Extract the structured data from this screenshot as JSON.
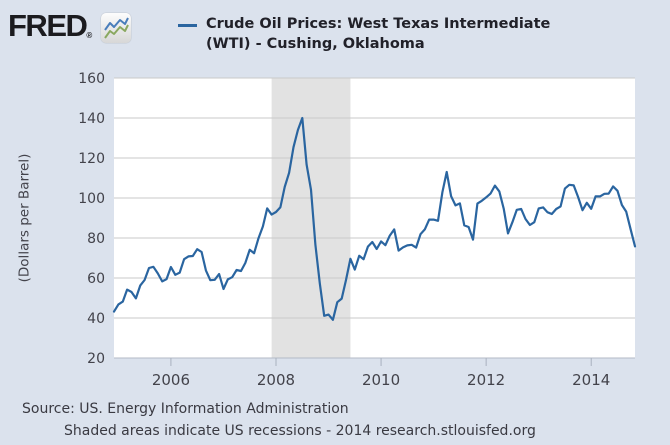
{
  "header": {
    "brand": "FRED",
    "registered_mark": "®",
    "legend": {
      "series_label_line1": "Crude Oil Prices: West Texas Intermediate",
      "series_label_line2": "(WTI) - Cushing, Oklahoma"
    }
  },
  "footer": {
    "source_line": "Source: US. Energy Information Administration",
    "note_line": "Shaded areas indicate US recessions - 2014 research.stlouisfed.org"
  },
  "colors": {
    "page_background": "#dbe2ed",
    "plot_background": "#ffffff",
    "line": "#2a65a0",
    "gridline": "#c9c9c9",
    "recession_band": "#e2e2e2",
    "axis_line": "#b3bac6",
    "tick_mark": "#a9b1bf",
    "logo_blue": "#4a7ebb",
    "logo_green": "#8aa860"
  },
  "chart_data": {
    "type": "line",
    "title": "Crude Oil Prices: West Texas Intermediate (WTI) - Cushing, Oklahoma",
    "xlabel": "",
    "ylabel": "(Dollars per Barrel)",
    "ylim": [
      20,
      160
    ],
    "y_ticks": [
      20,
      40,
      60,
      80,
      100,
      120,
      140,
      160
    ],
    "x_tick_labels": [
      "2006",
      "2008",
      "2010",
      "2012",
      "2014"
    ],
    "x_tick_indices": [
      13,
      37,
      61,
      85,
      109
    ],
    "grid": true,
    "legend_position": "top",
    "frequency": "monthly",
    "recessions": [
      {
        "start_date": "2007-12",
        "end_date": "2009-06",
        "start_index": 36,
        "end_index": 54
      }
    ],
    "dates": [
      "2004-12",
      "2005-01",
      "2005-02",
      "2005-03",
      "2005-04",
      "2005-05",
      "2005-06",
      "2005-07",
      "2005-08",
      "2005-09",
      "2005-10",
      "2005-11",
      "2005-12",
      "2006-01",
      "2006-02",
      "2006-03",
      "2006-04",
      "2006-05",
      "2006-06",
      "2006-07",
      "2006-08",
      "2006-09",
      "2006-10",
      "2006-11",
      "2006-12",
      "2007-01",
      "2007-02",
      "2007-03",
      "2007-04",
      "2007-05",
      "2007-06",
      "2007-07",
      "2007-08",
      "2007-09",
      "2007-10",
      "2007-11",
      "2007-12",
      "2008-01",
      "2008-02",
      "2008-03",
      "2008-04",
      "2008-05",
      "2008-06",
      "2008-07",
      "2008-08",
      "2008-09",
      "2008-10",
      "2008-11",
      "2008-12",
      "2009-01",
      "2009-02",
      "2009-03",
      "2009-04",
      "2009-05",
      "2009-06",
      "2009-07",
      "2009-08",
      "2009-09",
      "2009-10",
      "2009-11",
      "2009-12",
      "2010-01",
      "2010-02",
      "2010-03",
      "2010-04",
      "2010-05",
      "2010-06",
      "2010-07",
      "2010-08",
      "2010-09",
      "2010-10",
      "2010-11",
      "2010-12",
      "2011-01",
      "2011-02",
      "2011-03",
      "2011-04",
      "2011-05",
      "2011-06",
      "2011-07",
      "2011-08",
      "2011-09",
      "2011-10",
      "2011-11",
      "2011-12",
      "2012-01",
      "2012-02",
      "2012-03",
      "2012-04",
      "2012-05",
      "2012-06",
      "2012-07",
      "2012-08",
      "2012-09",
      "2012-10",
      "2012-11",
      "2012-12",
      "2013-01",
      "2013-02",
      "2013-03",
      "2013-04",
      "2013-05",
      "2013-06",
      "2013-07",
      "2013-08",
      "2013-09",
      "2013-10",
      "2013-11",
      "2013-12",
      "2014-01",
      "2014-02",
      "2014-03",
      "2014-04",
      "2014-05",
      "2014-06",
      "2014-07",
      "2014-08",
      "2014-09",
      "2014-10",
      "2014-11"
    ],
    "values": [
      43.2,
      46.8,
      48.2,
      54.2,
      53.0,
      49.8,
      56.3,
      59.0,
      65.0,
      65.6,
      62.3,
      58.3,
      59.4,
      65.5,
      61.6,
      62.7,
      69.4,
      70.8,
      71.0,
      74.4,
      73.0,
      63.8,
      58.9,
      59.1,
      62.0,
      54.5,
      59.3,
      60.4,
      64.0,
      63.5,
      67.5,
      74.1,
      72.4,
      79.9,
      85.8,
      94.8,
      91.7,
      93.0,
      95.4,
      105.5,
      112.6,
      125.4,
      134.0,
      140.0,
      116.7,
      104.1,
      76.6,
      57.3,
      41.1,
      41.7,
      39.1,
      47.9,
      49.7,
      59.0,
      69.6,
      64.2,
      71.1,
      69.4,
      75.7,
      78.0,
      74.5,
      78.3,
      76.4,
      81.2,
      84.3,
      73.7,
      75.3,
      76.3,
      76.6,
      75.2,
      81.9,
      84.3,
      89.2,
      89.2,
      88.6,
      102.9,
      113.0,
      100.9,
      96.3,
      97.3,
      86.3,
      85.5,
      79.2,
      97.2,
      98.6,
      100.3,
      102.2,
      106.2,
      103.3,
      94.7,
      82.3,
      87.9,
      94.1,
      94.5,
      89.5,
      86.5,
      87.9,
      94.8,
      95.3,
      92.9,
      92.0,
      94.5,
      95.8,
      104.7,
      106.6,
      106.3,
      100.5,
      93.9,
      97.6,
      94.6,
      100.8,
      100.8,
      102.1,
      102.2,
      105.8,
      103.6,
      96.5,
      93.2,
      84.4,
      75.8
    ]
  }
}
